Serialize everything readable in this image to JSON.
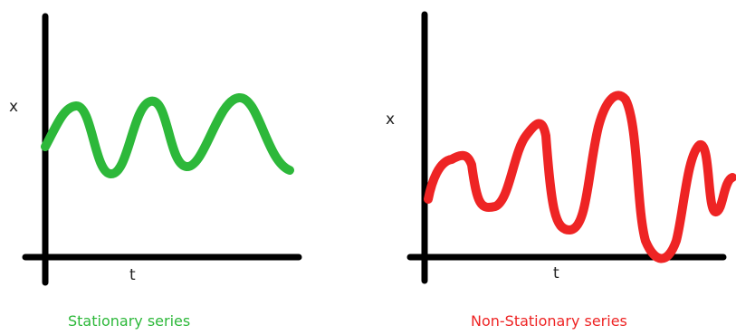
{
  "panels": [
    {
      "y_axis_label": "x",
      "x_axis_label": "t",
      "caption": "Stationary series",
      "color": "#2DB83A"
    },
    {
      "y_axis_label": "x",
      "x_axis_label": "t",
      "caption": "Non-Stationary series",
      "color": "#EE2424"
    }
  ],
  "axis_color": "#000000"
}
